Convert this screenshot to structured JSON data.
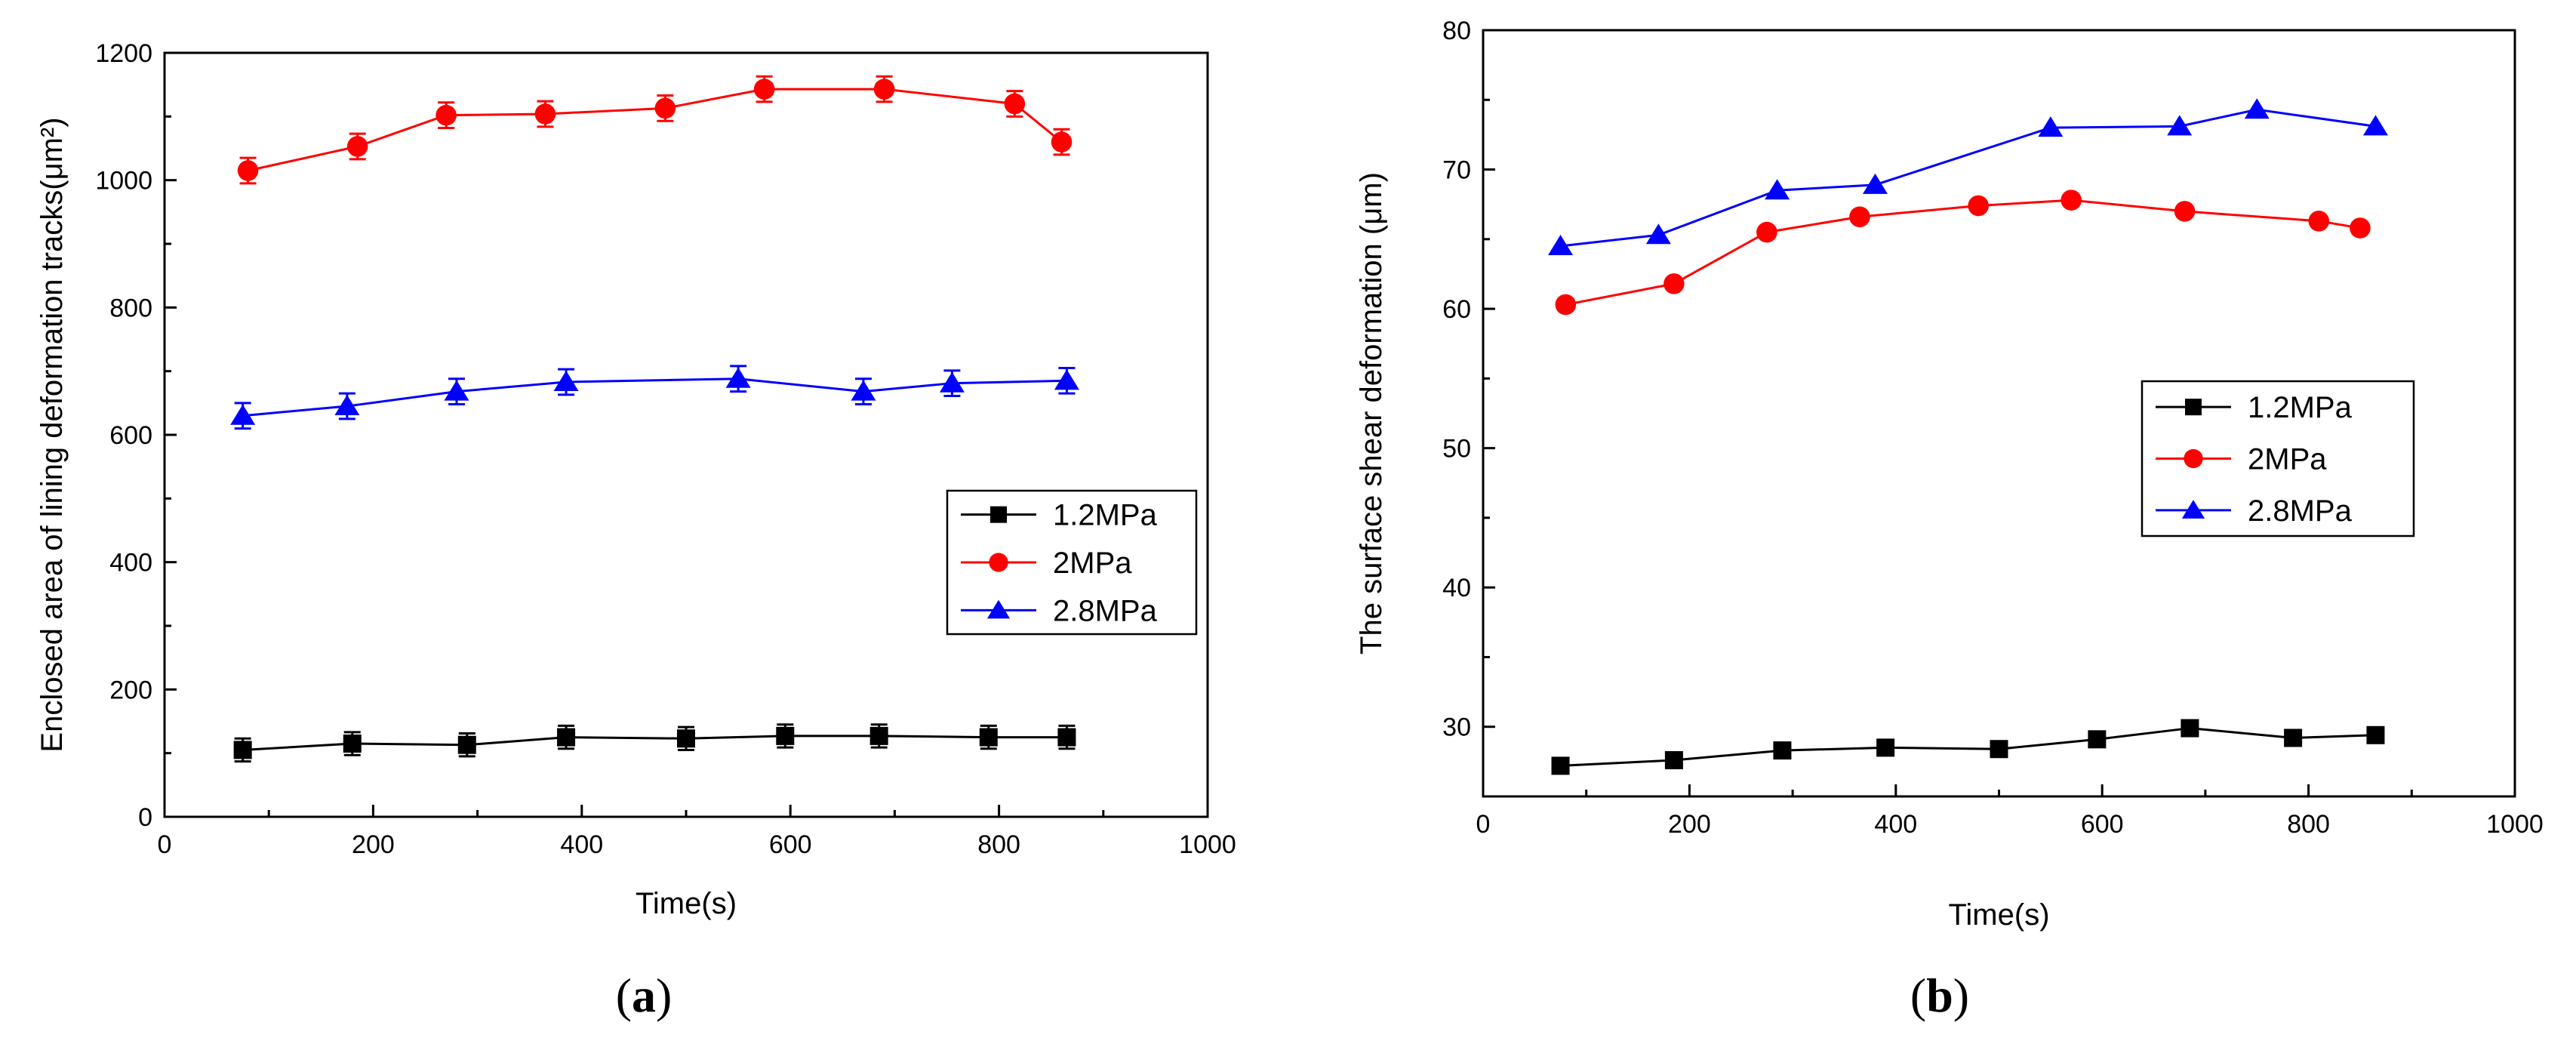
{
  "chart_data": [
    {
      "id": "a",
      "type": "line",
      "panel_label": "a",
      "title": "",
      "xlabel": "Time(s)",
      "ylabel": "Enclosed area of lining deformation tracks(μm²)",
      "xlim": [
        0,
        1000
      ],
      "ylim": [
        0,
        1200
      ],
      "xticks": [
        0,
        200,
        400,
        600,
        800,
        1000
      ],
      "yticks": [
        0,
        200,
        400,
        600,
        800,
        1000,
        1200
      ],
      "grid": false,
      "legend_position": "center-right",
      "error_bars": true,
      "series": [
        {
          "name": "1.2MPa",
          "color": "#000000",
          "marker": "square",
          "x": [
            75,
            180,
            290,
            385,
            500,
            595,
            685,
            790,
            865
          ],
          "y": [
            105,
            115,
            113,
            125,
            123,
            127,
            127,
            125,
            125
          ],
          "err": [
            18,
            18,
            18,
            18,
            18,
            18,
            18,
            18,
            18
          ]
        },
        {
          "name": "2MPa",
          "color": "#ff0000",
          "marker": "circle",
          "x": [
            80,
            185,
            270,
            365,
            480,
            575,
            690,
            815,
            860
          ],
          "y": [
            1015,
            1053,
            1102,
            1104,
            1113,
            1143,
            1143,
            1120,
            1060
          ],
          "err": [
            20,
            20,
            20,
            20,
            20,
            20,
            20,
            20,
            20
          ]
        },
        {
          "name": "2.8MPa",
          "color": "#0000ff",
          "marker": "triangle",
          "x": [
            75,
            175,
            280,
            385,
            550,
            670,
            755,
            865
          ],
          "y": [
            630,
            645,
            668,
            683,
            688,
            668,
            681,
            685
          ],
          "err": [
            20,
            20,
            20,
            20,
            20,
            20,
            20,
            20
          ]
        }
      ]
    },
    {
      "id": "b",
      "type": "line",
      "panel_label": "b",
      "title": "",
      "xlabel": "Time(s)",
      "ylabel": "The surface shear deformation (μm)",
      "xlim": [
        0,
        1000
      ],
      "ylim": [
        25,
        80
      ],
      "xticks": [
        0,
        200,
        400,
        600,
        800,
        1000
      ],
      "yticks": [
        30,
        40,
        50,
        60,
        70,
        80
      ],
      "grid": false,
      "legend_position": "center-right",
      "error_bars": false,
      "series": [
        {
          "name": "1.2MPa",
          "color": "#000000",
          "marker": "square",
          "x": [
            75,
            185,
            290,
            390,
            500,
            595,
            685,
            785,
            865
          ],
          "y": [
            27.2,
            27.6,
            28.3,
            28.5,
            28.4,
            29.1,
            29.9,
            29.2,
            29.4
          ],
          "err": []
        },
        {
          "name": "2MPa",
          "color": "#ff0000",
          "marker": "circle",
          "x": [
            80,
            185,
            275,
            365,
            480,
            570,
            680,
            810,
            850
          ],
          "y": [
            60.3,
            61.8,
            65.5,
            66.6,
            67.4,
            67.8,
            67.0,
            66.3,
            65.8
          ],
          "err": []
        },
        {
          "name": "2.8MPa",
          "color": "#0000ff",
          "marker": "triangle",
          "x": [
            75,
            170,
            285,
            380,
            550,
            675,
            750,
            865
          ],
          "y": [
            64.5,
            65.3,
            68.5,
            68.9,
            73.0,
            73.1,
            74.3,
            73.1
          ],
          "err": []
        }
      ]
    }
  ]
}
